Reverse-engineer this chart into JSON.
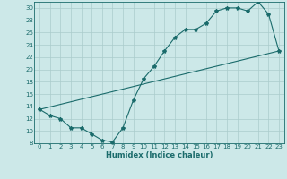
{
  "title": "",
  "xlabel": "Humidex (Indice chaleur)",
  "ylabel": "",
  "bg_color": "#cce8e8",
  "grid_color": "#aacccc",
  "line_color": "#1a6b6b",
  "ylim": [
    8,
    31
  ],
  "xlim": [
    -0.5,
    23.5
  ],
  "yticks": [
    8,
    10,
    12,
    14,
    16,
    18,
    20,
    22,
    24,
    26,
    28,
    30
  ],
  "xticks": [
    0,
    1,
    2,
    3,
    4,
    5,
    6,
    7,
    8,
    9,
    10,
    11,
    12,
    13,
    14,
    15,
    16,
    17,
    18,
    19,
    20,
    21,
    22,
    23
  ],
  "line1_x": [
    0,
    1,
    2,
    3,
    4,
    5,
    6,
    7,
    8,
    9,
    10,
    11,
    12,
    13,
    14,
    15,
    16,
    17,
    18,
    19,
    20,
    21,
    22,
    23
  ],
  "line1_y": [
    13.5,
    12.5,
    12,
    10.5,
    10.5,
    9.5,
    8.5,
    8.2,
    10.5,
    15,
    18.5,
    20.5,
    23,
    25.2,
    26.5,
    26.5,
    27.5,
    29.5,
    30,
    30,
    29.5,
    31,
    29,
    23
  ],
  "line2_x": [
    0,
    23
  ],
  "line2_y": [
    13.5,
    23
  ]
}
